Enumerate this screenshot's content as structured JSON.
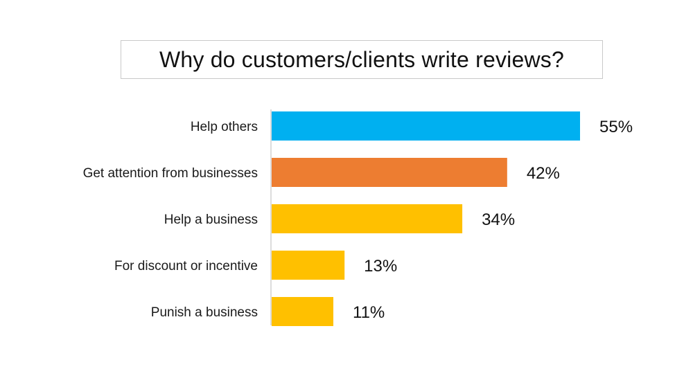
{
  "chart_data": {
    "type": "bar",
    "orientation": "horizontal",
    "title": "Why do customers/clients write reviews?",
    "categories": [
      "Help others",
      "Get attention from businesses",
      "Help a business",
      "For discount or incentive",
      "Punish a business"
    ],
    "values": [
      55,
      42,
      34,
      13,
      11
    ],
    "value_labels": [
      "55%",
      "42%",
      "34%",
      "13%",
      "11%"
    ],
    "bar_colors": [
      "#00b0f0",
      "#ed7d31",
      "#ffc000",
      "#ffc000",
      "#ffc000"
    ],
    "xlim": [
      0,
      55
    ],
    "grid": false,
    "legend": "none"
  }
}
